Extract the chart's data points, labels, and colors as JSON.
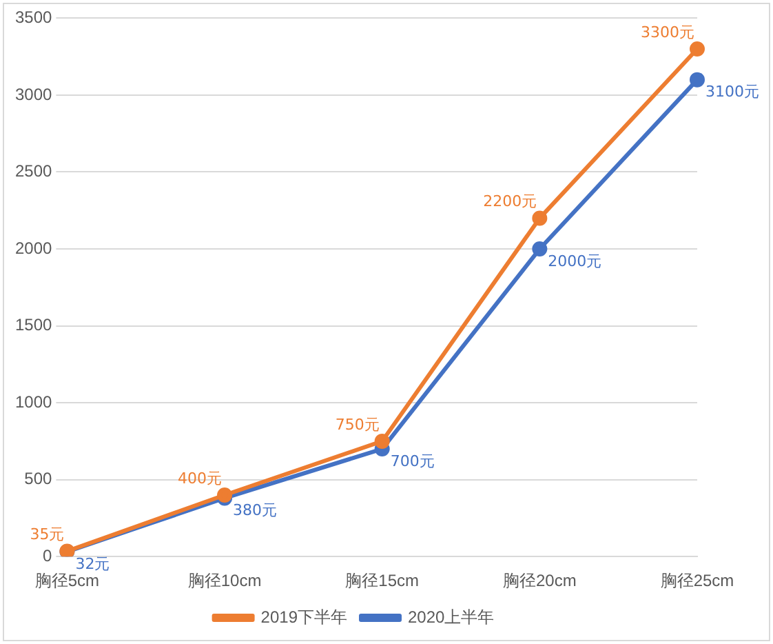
{
  "chart_data": {
    "type": "line",
    "categories": [
      "胸径5cm",
      "胸径10cm",
      "胸径15cm",
      "胸径20cm",
      "胸径25cm"
    ],
    "series": [
      {
        "name": "2019下半年",
        "color": "#ed7d31",
        "values": [
          35,
          400,
          750,
          2200,
          3300
        ],
        "value_labels": [
          "35元",
          "400元",
          "750元",
          "2200元",
          "3300元"
        ]
      },
      {
        "name": "2020上半年",
        "color": "#4472c4",
        "values": [
          32,
          380,
          700,
          2000,
          3100
        ],
        "value_labels": [
          "32元",
          "380元",
          "700元",
          "2000元",
          "3100元"
        ]
      }
    ],
    "ylim": [
      0,
      3500
    ],
    "yticks": [
      0,
      500,
      1000,
      1500,
      2000,
      2500,
      3000,
      3500
    ],
    "grid": "y",
    "legend": "bottom",
    "marker": "circle",
    "line_style": "solid"
  }
}
